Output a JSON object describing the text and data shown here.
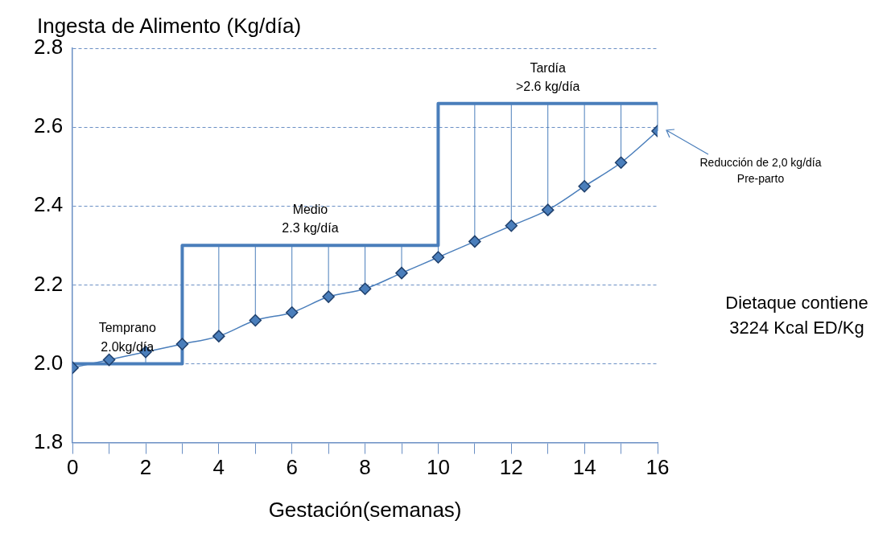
{
  "chart_data": {
    "type": "line",
    "xlabel": "Gestación(semanas)",
    "ylabel": "Ingesta de Alimento (Kg/día)",
    "xlim": [
      0,
      16
    ],
    "xticks": [
      0,
      {
        "value": 1,
        "label": null
      },
      2,
      {
        "value": 3,
        "label": null
      },
      4,
      {
        "value": 5,
        "label": null
      },
      6,
      {
        "value": 7,
        "label": null
      },
      8,
      {
        "value": 9,
        "label": null
      },
      10,
      {
        "value": 11,
        "label": null
      },
      12,
      {
        "value": 13,
        "label": null
      },
      14,
      {
        "value": 15,
        "label": null
      },
      16
    ],
    "ylim": [
      1.8,
      2.8
    ],
    "yticks": [
      1.8,
      {
        "value": 2,
        "label": "2.0"
      },
      2.2,
      2.4,
      2.6,
      2.8
    ],
    "grid": "y",
    "marker": "diamond",
    "series": [
      {
        "color": "#4a7ebb",
        "x": [
          0,
          1,
          2,
          3,
          4,
          5,
          6,
          7,
          8,
          9,
          10,
          11,
          12,
          13,
          14,
          15,
          16
        ],
        "values": [
          1.99,
          2.01,
          2.03,
          2.05,
          2.07,
          2.11,
          2.13,
          2.17,
          2.19,
          2.23,
          2.27,
          2.31,
          2.35,
          2.39,
          2.45,
          2.51,
          2.59
        ],
        "errors": [
          null,
          [
            2.0,
            2.01
          ],
          [
            2.0,
            2.03
          ],
          null,
          [
            2.07,
            2.3
          ],
          [
            2.11,
            2.3
          ],
          [
            2.13,
            2.3
          ],
          [
            2.17,
            2.3
          ],
          [
            2.19,
            2.3
          ],
          [
            2.23,
            2.3
          ],
          [
            2.27,
            2.3
          ],
          [
            2.31,
            2.66
          ],
          [
            2.35,
            2.66
          ],
          [
            2.39,
            2.66
          ],
          [
            2.45,
            2.66
          ],
          [
            2.51,
            2.66
          ],
          [
            2.59,
            2.66
          ]
        ]
      },
      {
        "type": "step",
        "color": "#4a7ebb",
        "marker": "none",
        "x": [
          0,
          3,
          10,
          16
        ],
        "values": [
          2.0,
          2.3,
          2.66,
          2.66
        ]
      }
    ],
    "annotations": [
      {
        "text": "Temprano\n2.0kg/día",
        "x": 1.5,
        "y": 2.0
      },
      {
        "text": "Medio\n2.3 kg/día",
        "x": 6.5,
        "y": 2.3
      },
      {
        "text": "Tardía\n>2.6 kg/día",
        "x": 13,
        "y": 2.66
      },
      "Reducción de 2,0 kg/día\nPre-parto",
      "Dietaque contiene\n3224 Kcal ED/Kg"
    ]
  }
}
